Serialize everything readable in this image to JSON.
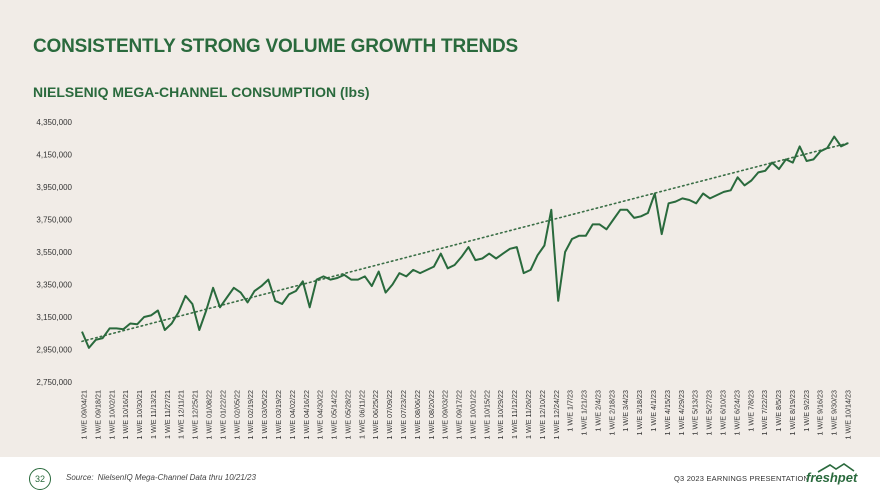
{
  "slide": {
    "title": "CONSISTENTLY STRONG VOLUME GROWTH TRENDS",
    "page_number": "32",
    "source_label": "Source:",
    "source_text": "NielsenIQ Mega-Channel Data thru 10/21/23",
    "presentation_label": "Q3 2023 EARNINGS PRESENTATION",
    "logo_text": "freshpet"
  },
  "colors": {
    "accent": "#2a6a3d",
    "line": "#2a6a3d",
    "trend": "#3a6e46",
    "background": "#f1ece7"
  },
  "chart_data": {
    "type": "line",
    "title": "NIELSENIQ MEGA-CHANNEL CONSUMPTION (lbs)",
    "xlabel": "",
    "ylabel": "",
    "ylim": [
      2750000,
      4350000
    ],
    "yticks": [
      2750000,
      2950000,
      3150000,
      3350000,
      3550000,
      3750000,
      3950000,
      4150000,
      4350000
    ],
    "ytick_labels": [
      "2,750,000",
      "2,950,000",
      "3,150,000",
      "3,350,000",
      "3,550,000",
      "3,750,000",
      "3,950,000",
      "4,150,000",
      "4,350,000"
    ],
    "x_tick_labels": [
      "1 W/E 09/04/21",
      "1 W/E 09/18/21",
      "1 W/E 10/02/21",
      "1 W/E 10/16/21",
      "1 W/E 10/30/21",
      "1 W/E 11/13/21",
      "1 W/E 11/27/21",
      "1 W/E 12/11/21",
      "1 W/E 12/25/21",
      "1 W/E 01/08/22",
      "1 W/E 01/22/22",
      "1 W/E 02/05/22",
      "1 W/E 02/19/22",
      "1 W/E 03/05/22",
      "1 W/E 03/19/22",
      "1 W/E 04/02/22",
      "1 W/E 04/16/22",
      "1 W/E 04/30/22",
      "1 W/E 05/14/22",
      "1 W/E 05/28/22",
      "1 W/E 06/11/22",
      "1 W/E 06/25/22",
      "1 W/E 07/09/22",
      "1 W/E 07/23/22",
      "1 W/E 08/06/22",
      "1 W/E 08/20/22",
      "1 W/E 09/03/22",
      "1 W/E 09/17/22",
      "1 W/E 10/01/22",
      "1 W/E 10/15/22",
      "1 W/E 10/29/22",
      "1 W/E 11/12/22",
      "1 W/E 11/26/22",
      "1 W/E 12/10/22",
      "1 W/E 12/24/22",
      "1 W/E 1/7/23",
      "1 W/E 1/21/23",
      "1 W/E 2/4/23",
      "1 W/E 2/18/23",
      "1 W/E 3/4/23",
      "1 W/E 3/18/23",
      "1 W/E 4/1/23",
      "1 W/E 4/15/23",
      "1 W/E 4/29/23",
      "1 W/E 5/13/23",
      "1 W/E 5/27/23",
      "1 W/E 6/10/23",
      "1 W/E 6/24/23",
      "1 W/E 7/8/23",
      "1 W/E 7/22/23",
      "1 W/E 8/5/23",
      "1 W/E 8/19/23",
      "1 W/E 9/2/23",
      "1 W/E 9/16/23",
      "1 W/E 9/30/23",
      "1 W/E 10/14/23"
    ],
    "series": [
      {
        "name": "Consumption (lbs)",
        "values": [
          3060000,
          2960000,
          3010000,
          3020000,
          3080000,
          3080000,
          3075000,
          3110000,
          3105000,
          3150000,
          3160000,
          3190000,
          3070000,
          3110000,
          3180000,
          3280000,
          3230000,
          3070000,
          3190000,
          3330000,
          3210000,
          3270000,
          3330000,
          3300000,
          3240000,
          3310000,
          3340000,
          3380000,
          3250000,
          3230000,
          3290000,
          3310000,
          3370000,
          3210000,
          3380000,
          3400000,
          3380000,
          3390000,
          3410000,
          3380000,
          3380000,
          3400000,
          3340000,
          3430000,
          3300000,
          3350000,
          3420000,
          3400000,
          3440000,
          3420000,
          3440000,
          3460000,
          3540000,
          3450000,
          3470000,
          3520000,
          3580000,
          3500000,
          3510000,
          3540000,
          3510000,
          3540000,
          3570000,
          3580000,
          3420000,
          3440000,
          3530000,
          3590000,
          3810000,
          3250000,
          3550000,
          3630000,
          3650000,
          3650000,
          3720000,
          3720000,
          3690000,
          3750000,
          3810000,
          3810000,
          3760000,
          3770000,
          3790000,
          3910000,
          3660000,
          3850000,
          3860000,
          3880000,
          3870000,
          3850000,
          3910000,
          3880000,
          3900000,
          3920000,
          3930000,
          4010000,
          3960000,
          3990000,
          4040000,
          4050000,
          4100000,
          4060000,
          4120000,
          4100000,
          4200000,
          4110000,
          4120000,
          4170000,
          4190000,
          4260000,
          4200000,
          4220000
        ]
      }
    ],
    "trendline": {
      "name": "Linear trend",
      "start": 3000000,
      "end": 4220000
    }
  }
}
